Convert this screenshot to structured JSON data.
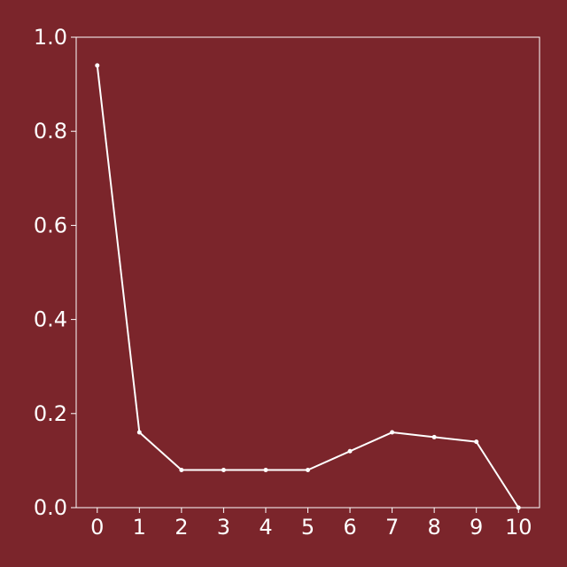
{
  "colors": {
    "background": "#7b252b",
    "foreground": "#ffffff"
  },
  "chart_data": {
    "type": "line",
    "title": "",
    "xlabel": "",
    "ylabel": "",
    "x": [
      0,
      1,
      2,
      3,
      4,
      5,
      6,
      7,
      8,
      9,
      10
    ],
    "series": [
      {
        "values": [
          0.94,
          0.16,
          0.08,
          0.08,
          0.08,
          0.08,
          0.12,
          0.16,
          0.15,
          0.14,
          0.0
        ]
      }
    ],
    "xlim": [
      -0.5,
      10.5
    ],
    "ylim": [
      0,
      1.0
    ],
    "xticks": [
      "0",
      "1",
      "2",
      "3",
      "4",
      "5",
      "6",
      "7",
      "8",
      "9",
      "10"
    ],
    "yticks": [
      "0.0",
      "0.2",
      "0.4",
      "0.6",
      "0.8",
      "1.0"
    ],
    "grid": false,
    "legend": "none",
    "markers": true
  }
}
